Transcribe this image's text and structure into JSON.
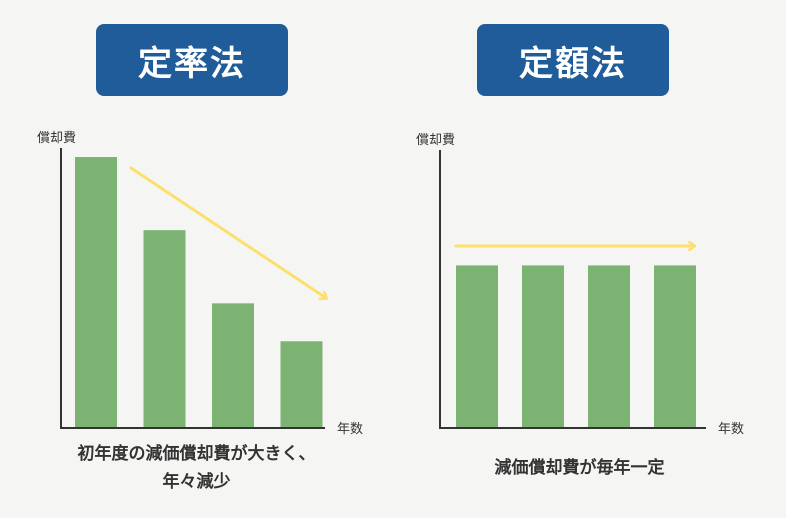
{
  "colors": {
    "badge": "#1f5c99",
    "bar": "#7cb373",
    "arrow": "#fde06a",
    "axis": "#333333"
  },
  "chart_data": [
    {
      "type": "bar",
      "title": "定率法",
      "ylabel": "償却費",
      "xlabel": "年数",
      "categories": [
        "",
        "",
        "",
        ""
      ],
      "values": [
        100,
        73,
        46,
        32
      ],
      "ylim": [
        0,
        100
      ],
      "trend": "decreasing",
      "caption_lines": [
        "初年度の減価償却費が大きく、",
        "年々減少"
      ]
    },
    {
      "type": "bar",
      "title": "定額法",
      "ylabel": "償却費",
      "xlabel": "年数",
      "categories": [
        "",
        "",
        "",
        ""
      ],
      "values": [
        60,
        60,
        60,
        60
      ],
      "ylim": [
        0,
        100
      ],
      "trend": "constant",
      "caption_lines": [
        "減価償却費が毎年一定"
      ]
    }
  ]
}
